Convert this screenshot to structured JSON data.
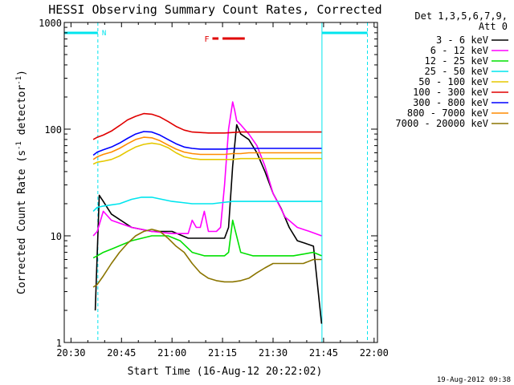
{
  "chart_data": {
    "type": "line",
    "title": "HESSI Observing Summary Count Rates, Corrected",
    "xlabel": "Start Time (16-Aug-12 20:22:02)",
    "ylabel": "Corrected Count Rate (s⁻¹ detector⁻¹)",
    "ylabel_parts": [
      "Corrected Count Rate (s",
      "-1",
      " detector",
      "-1",
      ")"
    ],
    "yscale": "log",
    "ylim": [
      1,
      1000
    ],
    "xlim_minutes": [
      20.4667,
      22.0167
    ],
    "x_tick_labels": [
      "20:30",
      "20:45",
      "21:00",
      "21:15",
      "21:30",
      "21:45",
      "22:00"
    ],
    "x_tick_hours": [
      20.5,
      20.75,
      21.0,
      21.25,
      21.5,
      21.75,
      22.0
    ],
    "y_tick_labels": [
      "1",
      "10",
      "100",
      "1000"
    ],
    "y_tick_values": [
      1,
      10,
      100,
      1000
    ],
    "legend_header": [
      "Det 1,3,5,6,7,9,",
      "Att 0"
    ],
    "legend_placement": "right",
    "timestamp": "19-Aug-2012 09:38",
    "night_label": "N",
    "flare_label": "F",
    "night_color": "#00e5ee",
    "flare_color": "#e00000",
    "night_segments": [
      [
        20.467,
        20.633
      ],
      [
        21.742,
        21.967
      ]
    ],
    "night_markers": [
      20.633,
      21.742,
      21.967
    ],
    "flare_segments": [
      [
        21.2,
        21.23
      ],
      [
        21.25,
        21.36
      ]
    ],
    "series": [
      {
        "name": "3 - 6 keV",
        "color": "#000000",
        "x": [
          20.62,
          20.64,
          20.66,
          20.7,
          20.8,
          20.9,
          21.0,
          21.08,
          21.12,
          21.16,
          21.2,
          21.24,
          21.26,
          21.28,
          21.3,
          21.32,
          21.34,
          21.38,
          21.42,
          21.46,
          21.5,
          21.54,
          21.58,
          21.62,
          21.66,
          21.7,
          21.74
        ],
        "values": [
          2,
          24,
          21,
          16,
          12,
          11,
          11,
          9.5,
          9.5,
          9.5,
          9.5,
          9.5,
          9.5,
          12,
          45,
          110,
          90,
          80,
          60,
          40,
          25,
          18,
          12,
          9,
          8.5,
          8,
          1.5
        ]
      },
      {
        "name": "6 - 12 keV",
        "color": "#ff00ff",
        "x": [
          20.61,
          20.63,
          20.66,
          20.7,
          20.8,
          20.9,
          21.0,
          21.06,
          21.08,
          21.1,
          21.12,
          21.14,
          21.16,
          21.18,
          21.22,
          21.24,
          21.26,
          21.28,
          21.3,
          21.31,
          21.32,
          21.34,
          21.38,
          21.42,
          21.46,
          21.5,
          21.56,
          21.62,
          21.68,
          21.74
        ],
        "values": [
          10,
          11,
          17,
          14,
          12,
          11,
          10.5,
          10.5,
          10.5,
          14,
          12,
          12,
          17,
          11,
          11,
          12,
          30,
          100,
          180,
          150,
          120,
          110,
          90,
          70,
          45,
          25,
          15,
          12,
          11,
          10
        ]
      },
      {
        "name": "12 - 25 keV",
        "color": "#00e000",
        "x": [
          20.61,
          20.63,
          20.66,
          20.7,
          20.8,
          20.9,
          20.98,
          21.04,
          21.1,
          21.16,
          21.22,
          21.26,
          21.28,
          21.3,
          21.34,
          21.4,
          21.5,
          21.6,
          21.7,
          21.74
        ],
        "values": [
          6.2,
          6.5,
          7,
          7.5,
          9,
          10,
          10,
          9,
          7,
          6.5,
          6.5,
          6.5,
          7,
          14,
          7,
          6.5,
          6.5,
          6.5,
          7,
          6.5
        ]
      },
      {
        "name": "25 - 50 keV",
        "color": "#00e5ee",
        "x": [
          20.61,
          20.63,
          20.66,
          20.7,
          20.74,
          20.8,
          20.85,
          20.9,
          20.95,
          21.0,
          21.05,
          21.1,
          21.15,
          21.2,
          21.25,
          21.3,
          21.35,
          21.4,
          21.45,
          21.5,
          21.55,
          21.6,
          21.65,
          21.7,
          21.74
        ],
        "values": [
          17,
          18.5,
          19,
          19.5,
          20,
          22,
          23,
          23,
          22,
          21,
          20.5,
          20,
          20,
          20,
          20.5,
          21,
          21,
          21,
          21,
          21,
          21,
          21,
          21,
          21,
          21
        ]
      },
      {
        "name": "50 - 100 keV",
        "color": "#e5c800",
        "x": [
          20.61,
          20.63,
          20.66,
          20.7,
          20.74,
          20.78,
          20.82,
          20.86,
          20.9,
          20.94,
          20.98,
          21.02,
          21.06,
          21.1,
          21.14,
          21.18,
          21.22,
          21.26,
          21.3,
          21.34,
          21.38,
          21.42,
          21.46,
          21.5,
          21.55,
          21.6,
          21.65,
          21.7,
          21.74
        ],
        "values": [
          47,
          49,
          50,
          52,
          56,
          62,
          68,
          72,
          74,
          72,
          67,
          60,
          55,
          53,
          52,
          52,
          52,
          52,
          52,
          53,
          53,
          53,
          53,
          53,
          53,
          53,
          53,
          53,
          53
        ]
      },
      {
        "name": "100 - 300 keV",
        "color": "#e00000",
        "x": [
          20.61,
          20.63,
          20.66,
          20.7,
          20.74,
          20.78,
          20.82,
          20.86,
          20.9,
          20.94,
          20.98,
          21.02,
          21.06,
          21.1,
          21.14,
          21.18,
          21.22,
          21.26,
          21.3,
          21.34,
          21.38,
          21.42,
          21.46,
          21.5,
          21.55,
          21.6,
          21.65,
          21.7,
          21.74
        ],
        "values": [
          80,
          84,
          88,
          96,
          108,
          122,
          132,
          140,
          138,
          130,
          118,
          106,
          98,
          94,
          93,
          92,
          92,
          92,
          93,
          94,
          94,
          94,
          94,
          94,
          94,
          94,
          94,
          94,
          94
        ]
      },
      {
        "name": "300 - 800 keV",
        "color": "#0000ff",
        "x": [
          20.61,
          20.63,
          20.66,
          20.7,
          20.74,
          20.78,
          20.82,
          20.86,
          20.9,
          20.94,
          20.98,
          21.02,
          21.06,
          21.1,
          21.14,
          21.18,
          21.22,
          21.26,
          21.3,
          21.34,
          21.38,
          21.42,
          21.46,
          21.5,
          21.55,
          21.6,
          21.65,
          21.7,
          21.74
        ],
        "values": [
          57,
          61,
          64,
          68,
          74,
          82,
          90,
          95,
          94,
          88,
          80,
          73,
          68,
          66,
          65,
          65,
          65,
          65,
          66,
          66,
          66,
          66,
          66,
          66,
          66,
          66,
          66,
          66,
          66
        ]
      },
      {
        "name": "800 - 7000 keV",
        "color": "#ff8c00",
        "x": [
          20.61,
          20.63,
          20.66,
          20.7,
          20.74,
          20.78,
          20.82,
          20.86,
          20.9,
          20.94,
          20.98,
          21.02,
          21.06,
          21.1,
          21.14,
          21.18,
          21.22,
          21.26,
          21.3,
          21.34,
          21.38,
          21.42,
          21.46,
          21.5,
          21.55,
          21.6,
          21.65,
          21.7,
          21.74
        ],
        "values": [
          52,
          55,
          58,
          61,
          66,
          73,
          80,
          84,
          83,
          78,
          71,
          65,
          61,
          59,
          58,
          58,
          58,
          58,
          59,
          59,
          60,
          60,
          60,
          60,
          60,
          60,
          60,
          60,
          60
        ]
      },
      {
        "name": "7000 - 20000 keV",
        "color": "#8b7500",
        "x": [
          20.61,
          20.63,
          20.66,
          20.7,
          20.74,
          20.78,
          20.82,
          20.86,
          20.9,
          20.94,
          20.98,
          21.02,
          21.06,
          21.1,
          21.14,
          21.18,
          21.22,
          21.26,
          21.3,
          21.34,
          21.38,
          21.42,
          21.46,
          21.5,
          21.55,
          21.6,
          21.65,
          21.7,
          21.74
        ],
        "values": [
          3.3,
          3.5,
          4.2,
          5.5,
          7,
          8.5,
          10,
          11,
          11.5,
          11,
          9.5,
          8,
          7,
          5.5,
          4.5,
          4,
          3.8,
          3.7,
          3.7,
          3.8,
          4,
          4.5,
          5,
          5.5,
          5.5,
          5.5,
          5.5,
          6,
          6
        ]
      }
    ]
  }
}
